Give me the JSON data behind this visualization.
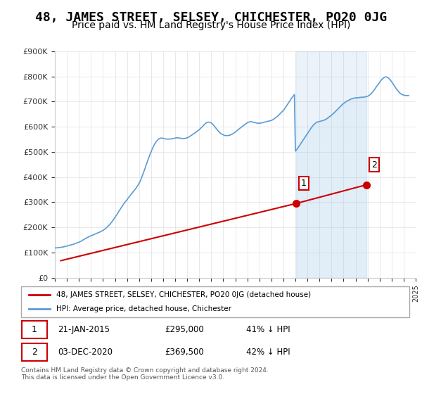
{
  "title": "48, JAMES STREET, SELSEY, CHICHESTER, PO20 0JG",
  "subtitle": "Price paid vs. HM Land Registry's House Price Index (HPI)",
  "title_fontsize": 13,
  "subtitle_fontsize": 10,
  "ylim": [
    0,
    900000
  ],
  "yticks": [
    0,
    100000,
    200000,
    300000,
    400000,
    500000,
    600000,
    700000,
    800000,
    900000
  ],
  "ytick_labels": [
    "£0",
    "£100K",
    "£200K",
    "£300K",
    "£400K",
    "£500K",
    "£600K",
    "£700K",
    "£800K",
    "£900K"
  ],
  "hpi_color": "#5b9bd5",
  "hpi_fill_color": "#c5dff5",
  "price_color": "#cc0000",
  "marker_color": "#cc0000",
  "annotation_border": "#cc0000",
  "grid_color": "#e0e0e0",
  "background_color": "#ffffff",
  "legend_label_price": "48, JAMES STREET, SELSEY, CHICHESTER, PO20 0JG (detached house)",
  "legend_label_hpi": "HPI: Average price, detached house, Chichester",
  "sale1_year": 2015.05,
  "sale1_price": 295000,
  "sale2_year": 2020.92,
  "sale2_price": 369500,
  "footnote": "Contains HM Land Registry data © Crown copyright and database right 2024.\nThis data is licensed under the Open Government Licence v3.0.",
  "hpi_years": [
    1995.0,
    1995.083,
    1995.167,
    1995.25,
    1995.333,
    1995.417,
    1995.5,
    1995.583,
    1995.667,
    1995.75,
    1995.833,
    1995.917,
    1996.0,
    1996.083,
    1996.167,
    1996.25,
    1996.333,
    1996.417,
    1996.5,
    1996.583,
    1996.667,
    1996.75,
    1996.833,
    1996.917,
    1997.0,
    1997.083,
    1997.167,
    1997.25,
    1997.333,
    1997.417,
    1997.5,
    1997.583,
    1997.667,
    1997.75,
    1997.833,
    1997.917,
    1998.0,
    1998.083,
    1998.167,
    1998.25,
    1998.333,
    1998.417,
    1998.5,
    1998.583,
    1998.667,
    1998.75,
    1998.833,
    1998.917,
    1999.0,
    1999.083,
    1999.167,
    1999.25,
    1999.333,
    1999.417,
    1999.5,
    1999.583,
    1999.667,
    1999.75,
    1999.833,
    1999.917,
    2000.0,
    2000.083,
    2000.167,
    2000.25,
    2000.333,
    2000.417,
    2000.5,
    2000.583,
    2000.667,
    2000.75,
    2000.833,
    2000.917,
    2001.0,
    2001.083,
    2001.167,
    2001.25,
    2001.333,
    2001.417,
    2001.5,
    2001.583,
    2001.667,
    2001.75,
    2001.833,
    2001.917,
    2002.0,
    2002.083,
    2002.167,
    2002.25,
    2002.333,
    2002.417,
    2002.5,
    2002.583,
    2002.667,
    2002.75,
    2002.833,
    2002.917,
    2003.0,
    2003.083,
    2003.167,
    2003.25,
    2003.333,
    2003.417,
    2003.5,
    2003.583,
    2003.667,
    2003.75,
    2003.833,
    2003.917,
    2004.0,
    2004.083,
    2004.167,
    2004.25,
    2004.333,
    2004.417,
    2004.5,
    2004.583,
    2004.667,
    2004.75,
    2004.833,
    2004.917,
    2005.0,
    2005.083,
    2005.167,
    2005.25,
    2005.333,
    2005.417,
    2005.5,
    2005.583,
    2005.667,
    2005.75,
    2005.833,
    2005.917,
    2006.0,
    2006.083,
    2006.167,
    2006.25,
    2006.333,
    2006.417,
    2006.5,
    2006.583,
    2006.667,
    2006.75,
    2006.833,
    2006.917,
    2007.0,
    2007.083,
    2007.167,
    2007.25,
    2007.333,
    2007.417,
    2007.5,
    2007.583,
    2007.667,
    2007.75,
    2007.833,
    2007.917,
    2008.0,
    2008.083,
    2008.167,
    2008.25,
    2008.333,
    2008.417,
    2008.5,
    2008.583,
    2008.667,
    2008.75,
    2008.833,
    2008.917,
    2009.0,
    2009.083,
    2009.167,
    2009.25,
    2009.333,
    2009.417,
    2009.5,
    2009.583,
    2009.667,
    2009.75,
    2009.833,
    2009.917,
    2010.0,
    2010.083,
    2010.167,
    2010.25,
    2010.333,
    2010.417,
    2010.5,
    2010.583,
    2010.667,
    2010.75,
    2010.833,
    2010.917,
    2011.0,
    2011.083,
    2011.167,
    2011.25,
    2011.333,
    2011.417,
    2011.5,
    2011.583,
    2011.667,
    2011.75,
    2011.833,
    2011.917,
    2012.0,
    2012.083,
    2012.167,
    2012.25,
    2012.333,
    2012.417,
    2012.5,
    2012.583,
    2012.667,
    2012.75,
    2012.833,
    2012.917,
    2013.0,
    2013.083,
    2013.167,
    2013.25,
    2013.333,
    2013.417,
    2013.5,
    2013.583,
    2013.667,
    2013.75,
    2013.833,
    2013.917,
    2014.0,
    2014.083,
    2014.167,
    2014.25,
    2014.333,
    2014.417,
    2014.5,
    2014.583,
    2014.667,
    2014.75,
    2014.833,
    2014.917,
    2015.0,
    2015.083,
    2015.167,
    2015.25,
    2015.333,
    2015.417,
    2015.5,
    2015.583,
    2015.667,
    2015.75,
    2015.833,
    2015.917,
    2016.0,
    2016.083,
    2016.167,
    2016.25,
    2016.333,
    2016.417,
    2016.5,
    2016.583,
    2016.667,
    2016.75,
    2016.833,
    2016.917,
    2017.0,
    2017.083,
    2017.167,
    2017.25,
    2017.333,
    2017.417,
    2017.5,
    2017.583,
    2017.667,
    2017.75,
    2017.833,
    2017.917,
    2018.0,
    2018.083,
    2018.167,
    2018.25,
    2018.333,
    2018.417,
    2018.5,
    2018.583,
    2018.667,
    2018.75,
    2018.833,
    2018.917,
    2019.0,
    2019.083,
    2019.167,
    2019.25,
    2019.333,
    2019.417,
    2019.5,
    2019.583,
    2019.667,
    2019.75,
    2019.833,
    2019.917,
    2020.0,
    2020.083,
    2020.167,
    2020.25,
    2020.333,
    2020.417,
    2020.5,
    2020.583,
    2020.667,
    2020.75,
    2020.833,
    2020.917,
    2021.0,
    2021.083,
    2021.167,
    2021.25,
    2021.333,
    2021.417,
    2021.5,
    2021.583,
    2021.667,
    2021.75,
    2021.833,
    2021.917,
    2022.0,
    2022.083,
    2022.167,
    2022.25,
    2022.333,
    2022.417,
    2022.5,
    2022.583,
    2022.667,
    2022.75,
    2022.833,
    2022.917,
    2023.0,
    2023.083,
    2023.167,
    2023.25,
    2023.333,
    2023.417,
    2023.5,
    2023.583,
    2023.667,
    2023.75,
    2023.833,
    2023.917,
    2024.0,
    2024.083,
    2024.167,
    2024.25,
    2024.333,
    2024.417
  ],
  "hpi_values": [
    119000,
    118500,
    119000,
    119500,
    120000,
    120500,
    121000,
    121500,
    122000,
    123000,
    124000,
    125000,
    126000,
    127000,
    128000,
    129500,
    130500,
    131500,
    132500,
    134000,
    135500,
    137000,
    138500,
    140000,
    141000,
    143000,
    145000,
    147000,
    150000,
    152000,
    155000,
    157000,
    159000,
    161000,
    163000,
    165000,
    167000,
    168500,
    170000,
    172000,
    173500,
    175000,
    177000,
    178500,
    180000,
    182000,
    184000,
    186000,
    188000,
    191000,
    194000,
    197000,
    201000,
    205000,
    209000,
    213000,
    218000,
    223000,
    228000,
    234000,
    240000,
    246000,
    252000,
    258000,
    265000,
    271000,
    277000,
    283000,
    289000,
    295000,
    300000,
    305000,
    310000,
    316000,
    321000,
    326000,
    331000,
    336000,
    341000,
    346000,
    351000,
    356000,
    362000,
    368000,
    375000,
    383000,
    392000,
    403000,
    413000,
    424000,
    435000,
    447000,
    458000,
    469000,
    480000,
    491000,
    500000,
    510000,
    519000,
    527000,
    534000,
    540000,
    545000,
    549000,
    552000,
    554000,
    555000,
    555000,
    554000,
    553000,
    552000,
    551000,
    551000,
    551000,
    551000,
    551000,
    552000,
    552000,
    553000,
    554000,
    555000,
    556000,
    556000,
    556000,
    555000,
    555000,
    554000,
    553000,
    553000,
    553000,
    554000,
    555000,
    556000,
    558000,
    560000,
    563000,
    565000,
    568000,
    571000,
    573000,
    576000,
    579000,
    582000,
    585000,
    588000,
    592000,
    596000,
    600000,
    604000,
    608000,
    612000,
    615000,
    617000,
    618000,
    618000,
    617000,
    615000,
    612000,
    608000,
    603000,
    598000,
    593000,
    588000,
    583000,
    579000,
    575000,
    572000,
    570000,
    568000,
    566000,
    565000,
    565000,
    565000,
    565000,
    566000,
    567000,
    569000,
    571000,
    573000,
    576000,
    579000,
    582000,
    585000,
    589000,
    592000,
    595000,
    598000,
    601000,
    604000,
    607000,
    610000,
    613000,
    616000,
    618000,
    619000,
    620000,
    620000,
    619000,
    618000,
    617000,
    616000,
    615000,
    614000,
    614000,
    614000,
    614000,
    615000,
    616000,
    617000,
    618000,
    619000,
    620000,
    621000,
    622000,
    623000,
    624000,
    625000,
    627000,
    629000,
    632000,
    635000,
    638000,
    641000,
    645000,
    649000,
    653000,
    657000,
    661000,
    665000,
    670000,
    676000,
    682000,
    688000,
    694000,
    700000,
    706000,
    712000,
    718000,
    723000,
    728000,
    503000,
    508000,
    513000,
    519000,
    525000,
    531000,
    537000,
    543000,
    549000,
    555000,
    561000,
    567000,
    573000,
    579000,
    585000,
    591000,
    597000,
    602000,
    607000,
    611000,
    614000,
    617000,
    619000,
    620000,
    621000,
    622000,
    623000,
    624000,
    625000,
    627000,
    629000,
    631000,
    634000,
    637000,
    640000,
    643000,
    646000,
    650000,
    653000,
    657000,
    661000,
    665000,
    669000,
    673000,
    677000,
    681000,
    685000,
    689000,
    692000,
    695000,
    698000,
    701000,
    703000,
    705000,
    707000,
    709000,
    711000,
    712000,
    713000,
    714000,
    715000,
    715000,
    715000,
    716000,
    716000,
    717000,
    717000,
    717000,
    718000,
    718000,
    719000,
    720000,
    721000,
    723000,
    726000,
    729000,
    733000,
    738000,
    743000,
    748000,
    754000,
    760000,
    765000,
    770000,
    776000,
    782000,
    787000,
    791000,
    794000,
    797000,
    798000,
    798000,
    796000,
    793000,
    789000,
    784000,
    779000,
    773000,
    767000,
    761000,
    755000,
    749000,
    744000,
    739000,
    735000,
    732000,
    729000,
    727000,
    726000,
    725000,
    724000,
    724000,
    724000,
    724000,
    724000,
    724000,
    725000,
    726000,
    727000,
    729000,
    731000,
    733000,
    735000,
    737000,
    739000,
    741000
  ],
  "price_years": [
    1995.5,
    2015.05,
    2020.92
  ],
  "price_values": [
    68000,
    295000,
    369500
  ],
  "shade_start": 2015.05,
  "shade_end": 2020.92,
  "xlim_start": 1995,
  "xlim_end": 2025
}
